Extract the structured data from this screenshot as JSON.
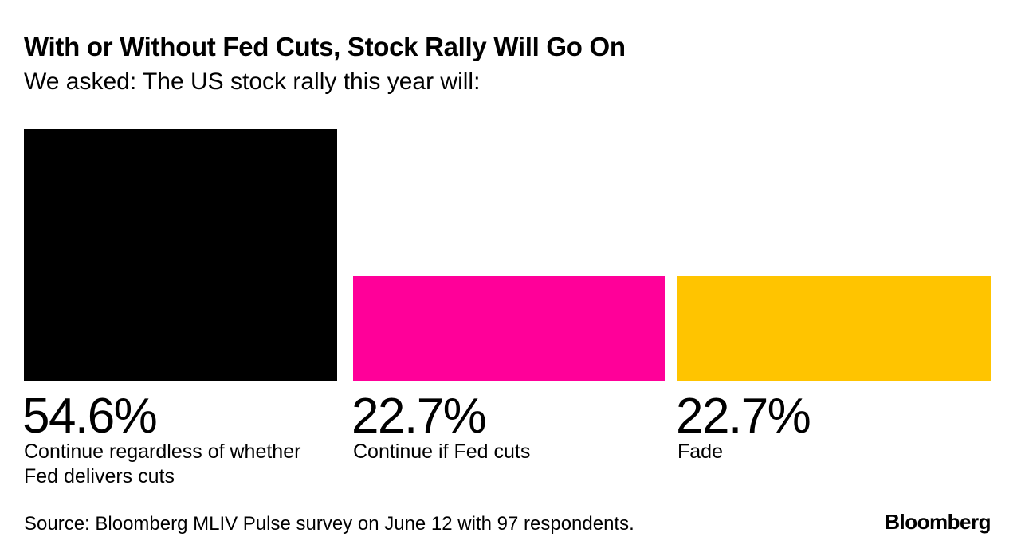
{
  "header": {
    "title": "With or Without Fed Cuts, Stock Rally Will Go On",
    "subtitle": "We asked: The US stock rally this year will:"
  },
  "footer": {
    "source": "Source: Bloomberg MLIV Pulse survey on June 12 with 97 respondents.",
    "logo": "Bloomberg"
  },
  "chart_data": {
    "type": "bar",
    "title": "With or Without Fed Cuts, Stock Rally Will Go On",
    "subtitle": "We asked: The US stock rally this year will:",
    "categories": [
      "Continue regardless of whether Fed delivers cuts",
      "Continue if Fed cuts",
      "Fade"
    ],
    "values": [
      54.6,
      22.7,
      22.7
    ],
    "value_labels": [
      "54.6%",
      "22.7%",
      "22.7%"
    ],
    "colors": [
      "#000000",
      "#ff0099",
      "#ffc400"
    ],
    "unit": "%",
    "grid": false,
    "legend": "none"
  }
}
